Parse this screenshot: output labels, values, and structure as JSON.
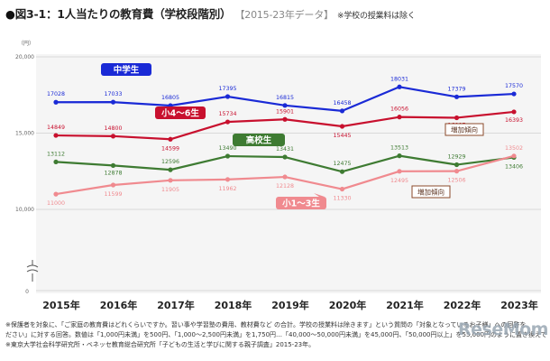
{
  "header": {
    "bullet": "●",
    "title": "図3-1：1人当たりの教育費（学校段階別）",
    "subtitle": "【2015-23年データ】",
    "note": "※学校の授業料は除く"
  },
  "chart_data": {
    "type": "line",
    "title": "図3-1：1人当たりの教育費（学校段階別）",
    "unit_label": "（円）",
    "y_tick_labels": [
      "0",
      "10,000",
      "15,000",
      "20,000"
    ],
    "categories": [
      "2015年",
      "2016年",
      "2017年",
      "2018年",
      "2019年",
      "2020年",
      "2021年",
      "2022年",
      "2023年"
    ],
    "y_axis": {
      "break": true,
      "visible_range": [
        10000,
        20000
      ],
      "ticks": [
        10000,
        15000,
        20000
      ]
    },
    "series": [
      {
        "name": "中学生",
        "color": "#1a2ad6",
        "values": [
          17028,
          17033,
          16805,
          17395,
          16815,
          16458,
          18031,
          17379,
          17570
        ]
      },
      {
        "name": "小4～6生",
        "color": "#c8102e",
        "values": [
          14849,
          14800,
          14599,
          15734,
          15901,
          15445,
          16056,
          16007,
          16393
        ]
      },
      {
        "name": "高校生",
        "color": "#3e7b32",
        "values": [
          13112,
          12878,
          12596,
          13490,
          13431,
          12475,
          13513,
          12929,
          13406
        ]
      },
      {
        "name": "小1～3生",
        "color": "#f08a8f",
        "values": [
          11000,
          11599,
          11905,
          11962,
          12128,
          11330,
          12495,
          12506,
          13502
        ]
      }
    ],
    "annotations": [
      "増加傾向",
      "増加傾向"
    ]
  },
  "footnotes": {
    "line1": "※保護者を対象に、「ご家庭の教育費はどれくらいですか。習い事や学習塾の費用、教材費など の合計。学校の授業料は除きます」という質問の「対象となっているお子様」への回答を",
    "line2": "ださい」に対する回答。数値は「1,000円未満」を500円、「1,000～2,500円未満」を1,750円…「40,000～50,000円未満」を45,000円、「50,000円以上」を55,000円のように置き換えて平均値を算出",
    "line3": "※東京大学社会科学研究所・ベネッセ教育総合研究所「子どもの生活と学びに関する親子調査」2015-23年。"
  },
  "logo": {
    "text": "ReseMom"
  }
}
